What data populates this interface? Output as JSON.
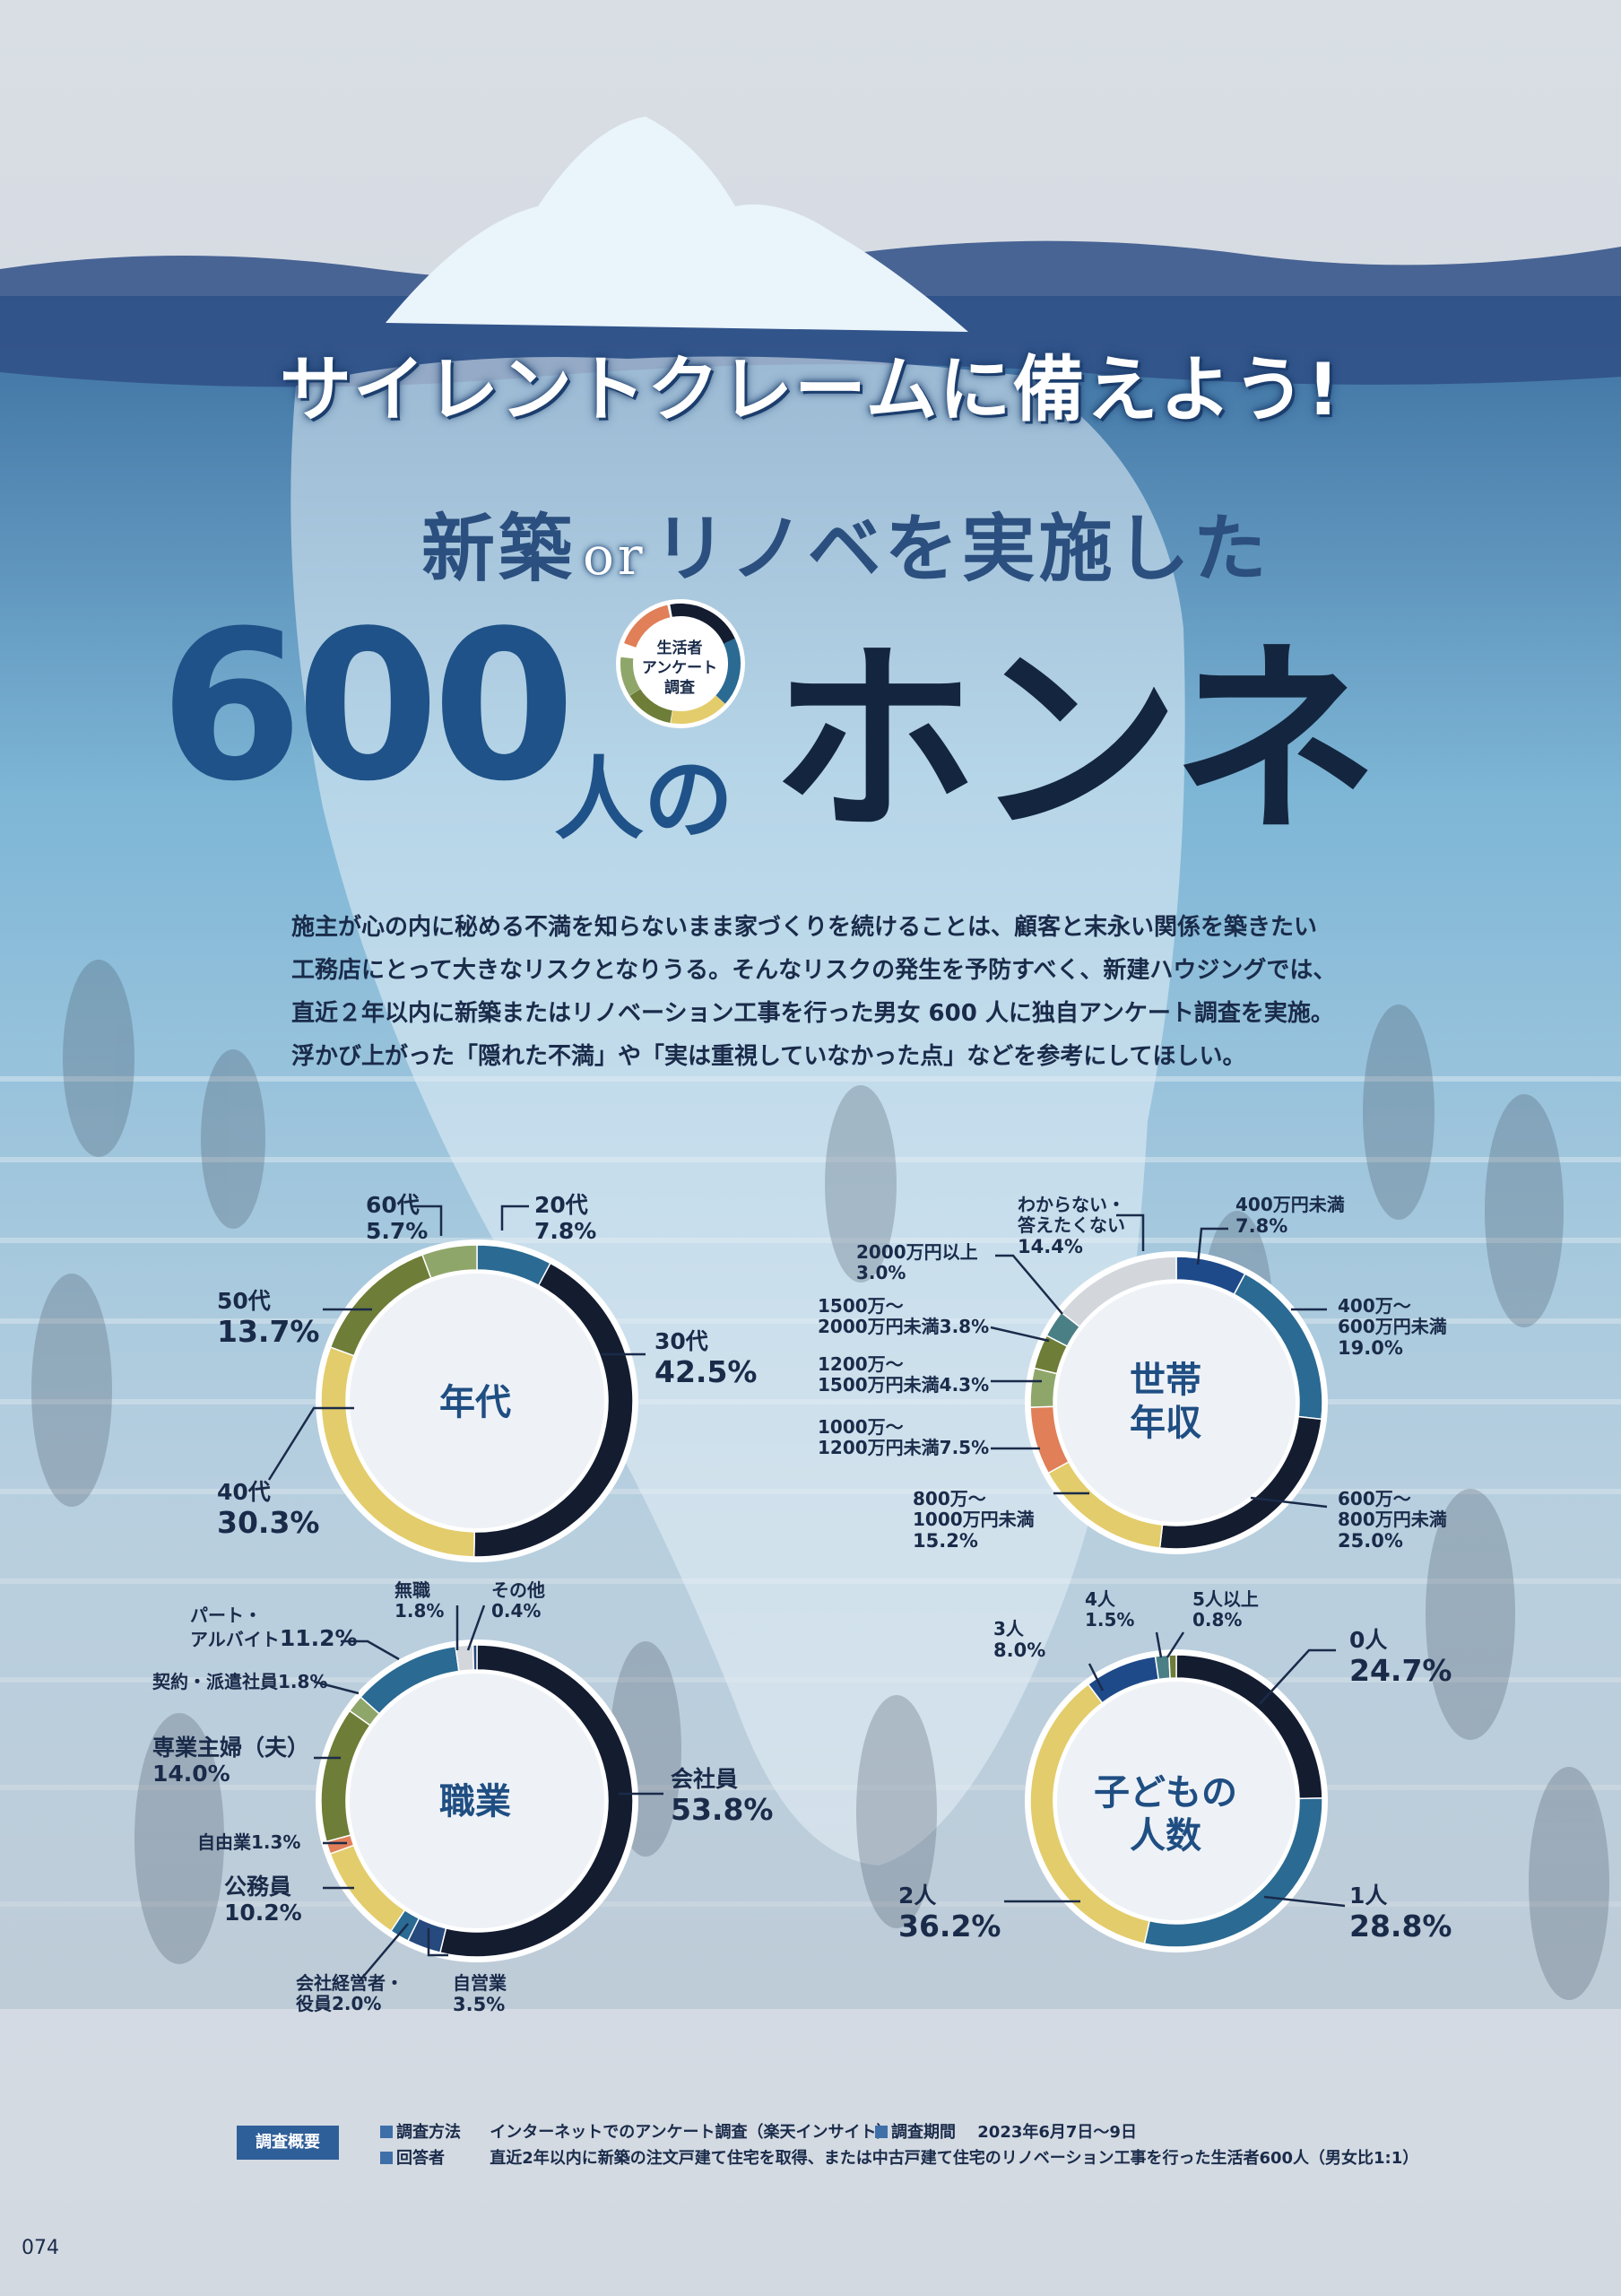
{
  "headline": "サイレントクレームに備えよう!",
  "subheadline": {
    "pre": "新築",
    "or": "or",
    "post": "リノベを実施した"
  },
  "title": {
    "number": "600",
    "hito": "人の",
    "honne": "ホンネ"
  },
  "badge": {
    "line1": "生活者",
    "line2": "アンケート",
    "line3": "調査"
  },
  "lead": [
    "施主が心の内に秘める不満を知らないまま家づくりを続けることは、顧客と末永い関係を築きたい",
    "工務店にとって大きなリスクとなりうる。そんなリスクの発生を予防すべく、新建ハウジングでは、",
    "直近２年以内に新築またはリノベーション工事を行った男女 600 人に独自アンケート調査を実施。",
    "浮かび上がった「隠れた不満」や「実は重視していなかった点」などを参考にしてほしい。"
  ],
  "colors": {
    "navy": "#141c30",
    "steel": "#2a6a93",
    "yellow": "#e3cc6b",
    "olive": "#6e7d37",
    "sage": "#8fa66a",
    "orange": "#e07f58",
    "lightgray": "#d3d7dc",
    "cobalt": "#1e4a8a",
    "deepblue": "#26497e",
    "teal": "#4a7f86",
    "white": "#ffffff"
  },
  "chart_data": [
    {
      "type": "pie",
      "title": "年代",
      "categories": [
        "20代",
        "30代",
        "40代",
        "50代",
        "60代"
      ],
      "values": [
        7.8,
        42.5,
        30.3,
        13.7,
        5.7
      ],
      "unit": "%"
    },
    {
      "type": "pie",
      "title": "世帯年収",
      "categories": [
        "400万円未満",
        "400万～600万円未満",
        "600万～800万円未満",
        "800万～1000万円未満",
        "1000万～1200万円未満",
        "1200万～1500万円未満",
        "1500万～2000万円未満",
        "2000万円以上",
        "わからない・答えたくない"
      ],
      "values": [
        7.8,
        19.0,
        25.0,
        15.2,
        7.5,
        4.3,
        3.8,
        3.0,
        14.4
      ],
      "unit": "%"
    },
    {
      "type": "pie",
      "title": "職業",
      "categories": [
        "会社員",
        "自営業",
        "会社経営者・役員",
        "公務員",
        "自由業",
        "専業主婦（夫）",
        "契約・派遣社員",
        "パート・アルバイト",
        "無職",
        "その他"
      ],
      "values": [
        53.8,
        3.5,
        2.0,
        10.2,
        1.3,
        14.0,
        1.8,
        11.2,
        1.8,
        0.4
      ],
      "unit": "%"
    },
    {
      "type": "pie",
      "title": "子どもの人数",
      "categories": [
        "0人",
        "1人",
        "2人",
        "3人",
        "4人",
        "5人以上"
      ],
      "values": [
        24.7,
        28.8,
        36.2,
        8.0,
        1.5,
        0.8
      ],
      "unit": "%"
    }
  ],
  "charts": {
    "age": {
      "center": "年代",
      "labels": [
        {
          "c": "20代",
          "v": "7.8%"
        },
        {
          "c": "30代",
          "v": "42.5%"
        },
        {
          "c": "40代",
          "v": "30.3%"
        },
        {
          "c": "50代",
          "v": "13.7%"
        },
        {
          "c": "60代",
          "v": "5.7%"
        }
      ]
    },
    "income": {
      "center1": "世帯",
      "center2": "年収",
      "labels": [
        {
          "c": "400万円未満",
          "v": "7.8%"
        },
        {
          "c": "400万～",
          "c2": "600万円未満",
          "v": "19.0%"
        },
        {
          "c": "600万～",
          "c2": "800万円未満",
          "v": "25.0%"
        },
        {
          "c": "800万～",
          "c2": "1000万円未満",
          "v": "15.2%"
        },
        {
          "c": "1000万～",
          "c2": "1200万円未満",
          "v": "7.5%"
        },
        {
          "c": "1200万～",
          "c2": "1500万円未満",
          "v": "4.3%"
        },
        {
          "c": "1500万～",
          "c2": "2000万円未満",
          "v": "3.8%"
        },
        {
          "c": "2000万円以上",
          "v": "3.0%"
        },
        {
          "c": "わからない・",
          "c2": "答えたくない",
          "v": "14.4%"
        }
      ]
    },
    "job": {
      "center": "職業",
      "labels": [
        {
          "c": "会社員",
          "v": "53.8%"
        },
        {
          "c": "自営業",
          "v": "3.5%"
        },
        {
          "c": "会社経営者・",
          "c2": "役員",
          "v": "2.0%"
        },
        {
          "c": "公務員",
          "v": "10.2%"
        },
        {
          "c": "自由業",
          "v": "1.3%"
        },
        {
          "c": "専業主婦（夫）",
          "v": "14.0%"
        },
        {
          "c": "契約・派遣社員",
          "v": "1.8%"
        },
        {
          "c": "パート・",
          "c2": "アルバイト",
          "v": "11.2%"
        },
        {
          "c": "無職",
          "v": "1.8%"
        },
        {
          "c": "その他",
          "v": "0.4%"
        }
      ]
    },
    "kids": {
      "center1": "子どもの",
      "center2": "人数",
      "labels": [
        {
          "c": "0人",
          "v": "24.7%"
        },
        {
          "c": "1人",
          "v": "28.8%"
        },
        {
          "c": "2人",
          "v": "36.2%"
        },
        {
          "c": "3人",
          "v": "8.0%"
        },
        {
          "c": "4人",
          "v": "1.5%"
        },
        {
          "c": "5人以上",
          "v": "0.8%"
        }
      ]
    }
  },
  "survey": {
    "tag": "調査概要",
    "method_label": "調査方法",
    "method": "インターネットでのアンケート調査（楽天インサイト）",
    "period_label": "調査期間",
    "period": "2023年6月7日～9日",
    "respondent_label": "回答者",
    "respondent": "直近2年以内に新築の注文戸建て住宅を取得、または中古戸建て住宅のリノベーション工事を行った生活者600人（男女比1:1）"
  },
  "page_number": "074"
}
